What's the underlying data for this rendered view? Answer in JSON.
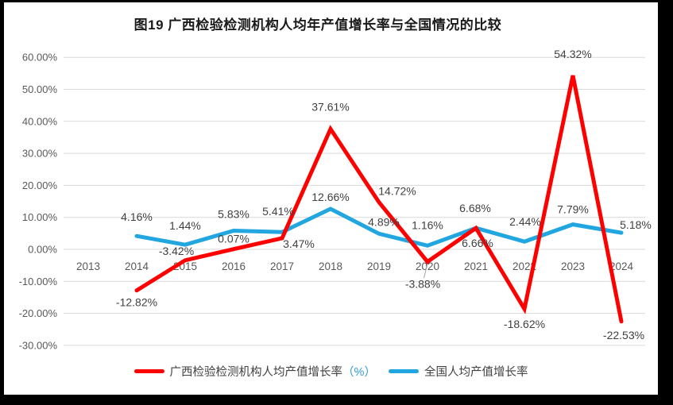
{
  "title": "图19 广西检验检测机构人均年产值增长率与全国情况的比较",
  "legend": [
    {
      "label": "广西检验检测机构人均产值增长率",
      "suffix": "（%）",
      "color": "#FF0000",
      "suffix_color": "#2E9BD6"
    },
    {
      "label": "全国人均产值增长率",
      "suffix": "",
      "color": "#21A6DF",
      "suffix_color": ""
    }
  ],
  "colors": {
    "grid": "#D9D9D9",
    "tick_text": "#595959",
    "data_label": "#404040",
    "leader": "#A6A6A6",
    "red_series": "#FF0000",
    "blue_series": "#21A6DF"
  },
  "chart_data": {
    "type": "line",
    "title": "图19 广西检验检测机构人均年产值增长率与全国情况的比较",
    "categories": [
      "2013",
      "2014",
      "2015",
      "2016",
      "2017",
      "2018",
      "2019",
      "2020",
      "2021",
      "2022",
      "2023",
      "2024"
    ],
    "series": [
      {
        "name": "广西检验检测机构人均产值增长率（%）",
        "color": "#FF0000",
        "values": [
          null,
          -12.82,
          -3.42,
          0.07,
          3.47,
          37.61,
          14.72,
          -3.88,
          6.66,
          -18.62,
          54.32,
          -22.53
        ],
        "labels": [
          "",
          "-12.82%",
          "-3.42%",
          "0.07%",
          "3.47%",
          "37.61%",
          "14.72%",
          "-3.88%",
          "6.66%",
          "-18.62%",
          "54.32%",
          "-22.53%"
        ],
        "label_offsets": [
          null,
          [
            0,
            20
          ],
          [
            -11,
            -7
          ],
          [
            0,
            -8
          ],
          [
            21,
            12
          ],
          [
            0,
            -23
          ],
          [
            23,
            -9
          ],
          [
            -6,
            33
          ],
          [
            2,
            24
          ],
          [
            0,
            24
          ],
          [
            0,
            -22
          ],
          [
            3,
            22
          ]
        ]
      },
      {
        "name": "全国人均产值增长率",
        "color": "#21A6DF",
        "values": [
          null,
          4.16,
          1.44,
          5.83,
          5.41,
          12.66,
          4.89,
          1.16,
          6.68,
          2.44,
          7.79,
          5.18
        ],
        "labels": [
          "",
          "4.16%",
          "1.44%",
          "5.83%",
          "5.41%",
          "12.66%",
          "4.89%",
          "1.16%",
          "6.68%",
          "2.44%",
          "7.79%",
          "5.18%"
        ],
        "label_offsets": [
          null,
          [
            0,
            -19
          ],
          [
            0,
            -19
          ],
          [
            0,
            -16
          ],
          [
            -5,
            -21
          ],
          [
            0,
            -10
          ],
          [
            6,
            -10
          ],
          [
            0,
            -21
          ],
          [
            -1,
            -20
          ],
          [
            1,
            -20
          ],
          [
            0,
            -14
          ],
          [
            18,
            -5
          ]
        ]
      }
    ],
    "y_axis": {
      "min": -30,
      "max": 60,
      "step": 10,
      "tick_labels": [
        "60.00%",
        "50.00%",
        "40.00%",
        "30.00%",
        "20.00%",
        "10.00%",
        "0.00%",
        "-10.00%",
        "-20.00%",
        "-30.00%"
      ]
    },
    "x_axis": {
      "labels_position": "below_zero_line"
    },
    "grid": true,
    "legend_position": "bottom",
    "annotations": {
      "leader_line": {
        "series_index": 0,
        "point_index": 7
      }
    }
  }
}
